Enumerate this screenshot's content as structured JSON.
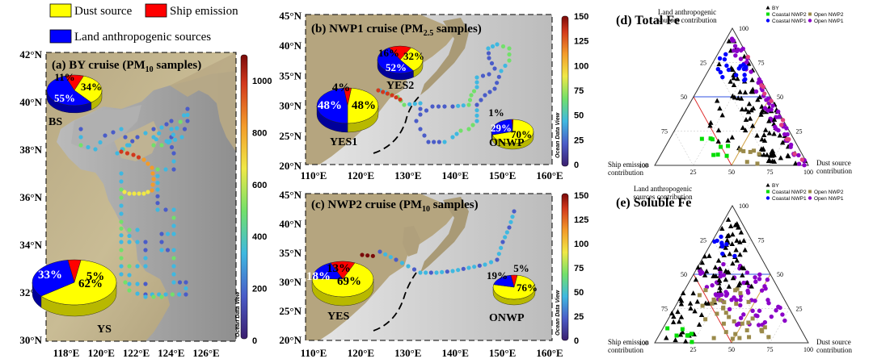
{
  "legend": {
    "dust_label": "Dust source",
    "ship_label": "Ship emission",
    "land_label": "Land anthropogenic sources",
    "colors": {
      "dust": "#ffff00",
      "ship": "#ff0000",
      "land": "#0000ff"
    }
  },
  "panel_a": {
    "title_main": "(a) BY cruise (PM",
    "title_sub": "10",
    "title_end": " samples)",
    "lat_ticks": [
      "42°N",
      "40°N",
      "38°N",
      "36°N",
      "34°N",
      "32°N",
      "30°N"
    ],
    "lon_ticks": [
      "118°E",
      "120°E",
      "122°E",
      "124°E",
      "126°E"
    ],
    "colorbar_ticks": [
      "1000",
      "800",
      "600",
      "400",
      "200",
      "0"
    ],
    "odv": "Ocean Data View",
    "pies": [
      {
        "region": "BS",
        "dust": "34%",
        "ship": "11%",
        "land": "55%"
      },
      {
        "region": "YS",
        "dust": "62%",
        "ship": "5%",
        "land": "33%"
      }
    ]
  },
  "panel_b": {
    "title_main": "(b) NWP1 cruise (PM",
    "title_sub": "2.5",
    "title_end": " samples)",
    "lat_ticks": [
      "45°N",
      "40°N",
      "35°N",
      "30°N",
      "25°N",
      "20°N"
    ],
    "lon_ticks": [
      "110°E",
      "120°E",
      "130°E",
      "140°E",
      "150°E",
      "160°E"
    ],
    "colorbar_ticks": [
      "150",
      "125",
      "100",
      "75",
      "50",
      "25",
      "0"
    ],
    "odv": "Ocean Data View",
    "pies": [
      {
        "region": "YES2",
        "dust": "32%",
        "ship": "16%",
        "land": "52%"
      },
      {
        "region": "YES1",
        "dust": "48%",
        "ship": "4%",
        "land": "48%"
      },
      {
        "region": "ONWP",
        "dust": "70%",
        "ship": "1%",
        "land": "29%"
      }
    ]
  },
  "panel_c": {
    "title_main": "(c) NWP2 cruise (PM",
    "title_sub": "10",
    "title_end": " samples)",
    "lat_ticks": [
      "45°N",
      "40°N",
      "35°N",
      "30°N",
      "25°N",
      "20°N"
    ],
    "lon_ticks": [
      "110°E",
      "120°E",
      "130°E",
      "140°E",
      "150°E",
      "160°E"
    ],
    "colorbar_ticks": [
      "150",
      "125",
      "100",
      "75",
      "50",
      "25",
      "0"
    ],
    "odv": "Ocean Data View",
    "pies": [
      {
        "region": "YES",
        "dust": "69%",
        "ship": "13%",
        "land": "18%"
      },
      {
        "region": "ONWP",
        "dust": "76%",
        "ship": "5%",
        "land": "19%"
      }
    ]
  },
  "panel_d": {
    "title": "(d) Total Fe",
    "top_label_1": "Land anthropogenic",
    "top_label_2": "sources contribution",
    "left_label_1": "Ship emission",
    "left_label_2": "contribution",
    "right_label_1": "Dust source",
    "right_label_2": "contribution",
    "legend": [
      {
        "name": "BY",
        "color": "#000000",
        "shape": "triangle"
      },
      {
        "name": "Coastal NWP2",
        "color": "#00dd00",
        "shape": "square"
      },
      {
        "name": "Open NWP2",
        "color": "#9a8a4a",
        "shape": "square"
      },
      {
        "name": "Coastal NWP1",
        "color": "#0000ff",
        "shape": "circle"
      },
      {
        "name": "Open NWP1",
        "color": "#8b00c8",
        "shape": "circle"
      }
    ],
    "ticks_top": "100",
    "ticks_side": [
      "75",
      "50",
      "25"
    ],
    "ticks_left": [
      "100",
      "75",
      "50",
      "25"
    ],
    "ticks_bottom": [
      "25",
      "50",
      "75",
      "100"
    ]
  },
  "panel_e": {
    "title": "(e) Soluble Fe",
    "top_label_1": "Land anthropogenic",
    "top_label_2": "sources contribution",
    "left_label_1": "Ship emission",
    "left_label_2": "contribution",
    "right_label_1": "Dust source",
    "right_label_2": "contribution",
    "legend": [
      {
        "name": "BY",
        "color": "#000000",
        "shape": "triangle"
      },
      {
        "name": "Coastal NWP2",
        "color": "#00dd00",
        "shape": "square"
      },
      {
        "name": "Open NWP2",
        "color": "#9a8a4a",
        "shape": "square"
      },
      {
        "name": "Coastal NWP1",
        "color": "#0000ff",
        "shape": "circle"
      },
      {
        "name": "Open NWP1",
        "color": "#8b00c8",
        "shape": "circle"
      }
    ],
    "ticks_top": "100",
    "ticks_side": [
      "75",
      "50",
      "25"
    ],
    "ticks_left": [
      "100",
      "75",
      "50",
      "25"
    ],
    "ticks_bottom": [
      "25",
      "50",
      "75",
      "100"
    ]
  }
}
